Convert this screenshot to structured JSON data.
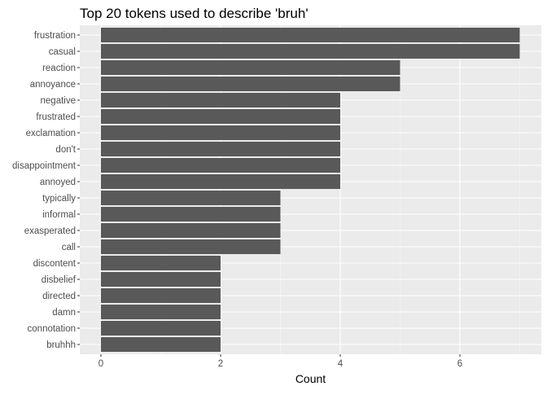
{
  "chart_data": {
    "type": "bar",
    "orientation": "horizontal",
    "title": "Top 20 tokens used to describe 'bruh'",
    "xlabel": "Count",
    "ylabel": "",
    "categories": [
      "frustration",
      "casual",
      "reaction",
      "annoyance",
      "negative",
      "frustrated",
      "exclamation",
      "don't",
      "disappointment",
      "annoyed",
      "typically",
      "informal",
      "exasperated",
      "call",
      "discontent",
      "disbelief",
      "directed",
      "damn",
      "connotation",
      "bruhhh"
    ],
    "values": [
      7,
      7,
      5,
      5,
      4,
      4,
      4,
      4,
      4,
      4,
      3,
      3,
      3,
      3,
      2,
      2,
      2,
      2,
      2,
      2
    ],
    "xlim": [
      0,
      7
    ],
    "xticks": [
      0,
      2,
      4,
      6
    ],
    "grid": true,
    "colors": {
      "bar": "#595959",
      "panel": "#ebebeb",
      "grid_major": "#ffffff",
      "grid_minor": "#f5f5f5",
      "tick_label": "#4d4d4d",
      "tick_mark": "#333333",
      "title": "#000000"
    }
  }
}
